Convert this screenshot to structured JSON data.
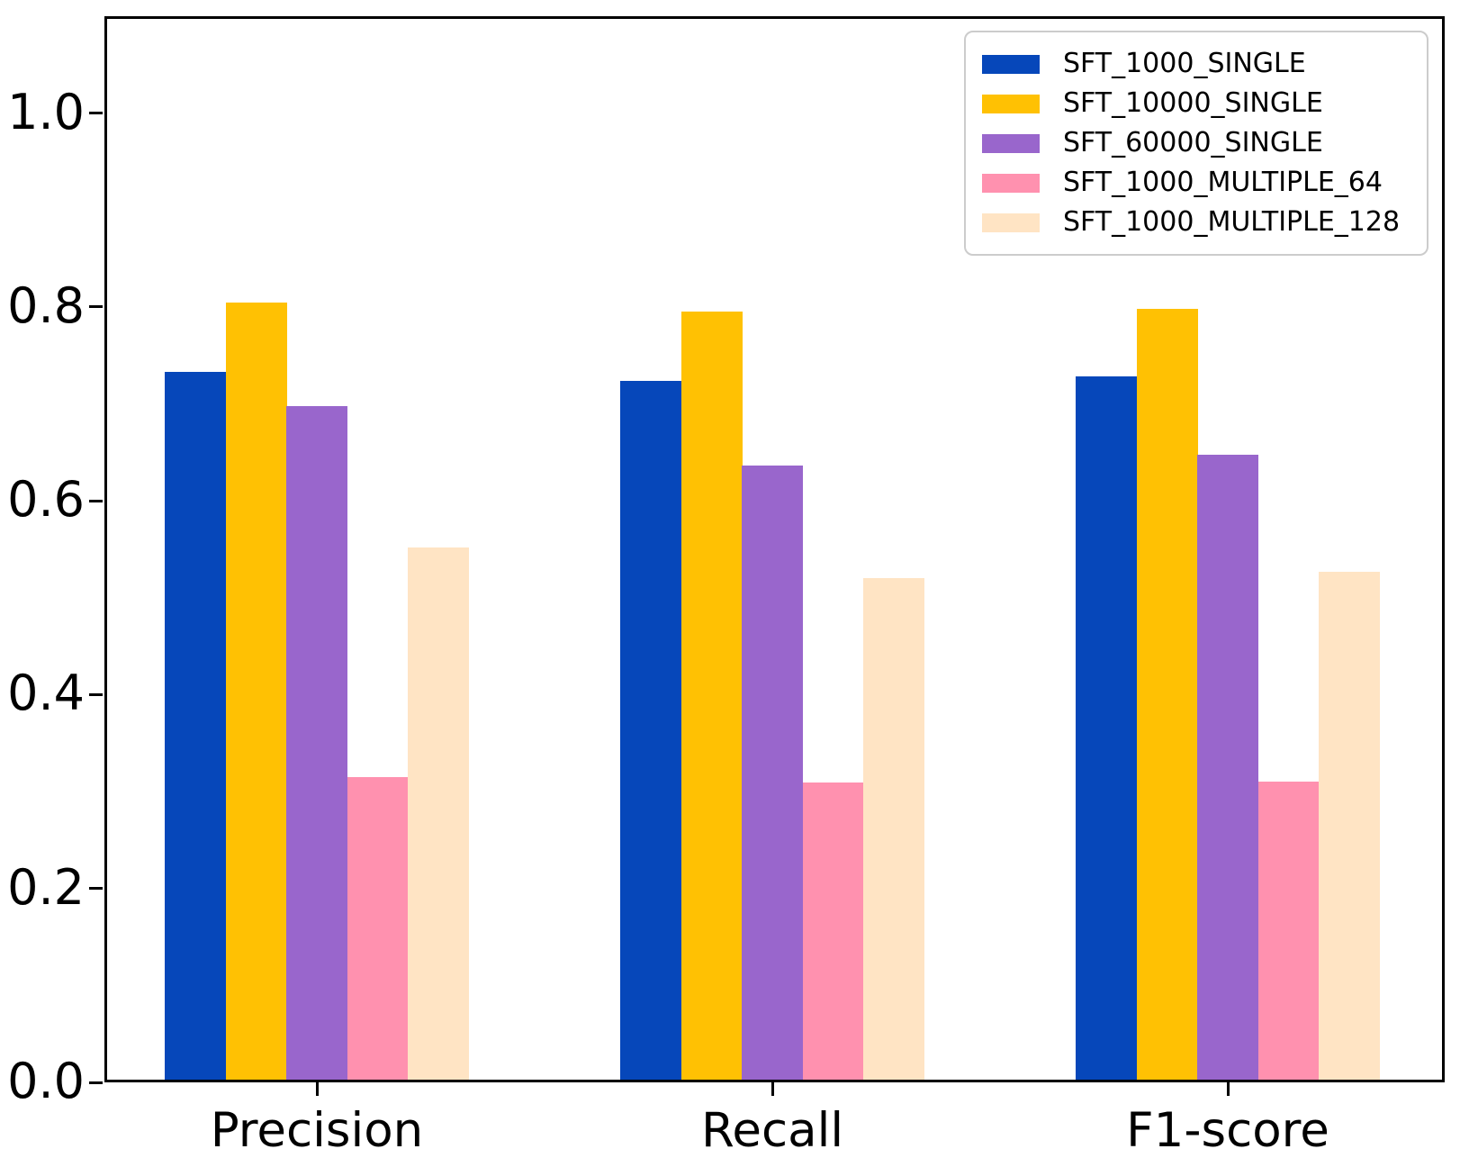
{
  "chart_data": {
    "type": "bar",
    "title": "",
    "xlabel": "",
    "ylabel": "",
    "categories": [
      "Precision",
      "Recall",
      "F1-score"
    ],
    "series": [
      {
        "name": "SFT_1000_SINGLE",
        "color": "#0647BA",
        "values": [
          0.733,
          0.724,
          0.728
        ]
      },
      {
        "name": "SFT_10000_SINGLE",
        "color": "#FFC103",
        "values": [
          0.805,
          0.795,
          0.798
        ]
      },
      {
        "name": "SFT_60000_SINGLE",
        "color": "#9966CC",
        "values": [
          0.698,
          0.636,
          0.648
        ]
      },
      {
        "name": "SFT_1000_MULTIPLE_64",
        "color": "#FF91AF",
        "values": [
          0.315,
          0.309,
          0.31
        ]
      },
      {
        "name": "SFT_1000_MULTIPLE_128",
        "color": "#FFE4C4",
        "values": [
          0.552,
          0.52,
          0.527
        ]
      }
    ],
    "ytick_labels": [
      "0.0",
      "0.2",
      "0.4",
      "0.6",
      "0.8",
      "1.0"
    ],
    "ylim": [
      0,
      1.1
    ],
    "grid": false,
    "legend_position": "upper right",
    "axis_color": "#000000",
    "background_color": "#ffffff",
    "legend_border_color": "#cccccc"
  }
}
